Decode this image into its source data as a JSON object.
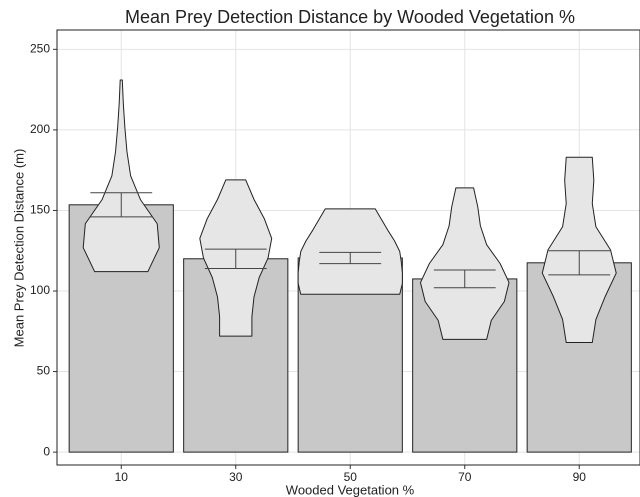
{
  "chart_data": {
    "type": "bar_violin",
    "title": "Mean Prey Detection Distance by Wooded Vegetation %",
    "x_label": "Wooded Vegetation %",
    "y_label": "Mean Prey Detection Distance (m)",
    "categories": [
      "10",
      "30",
      "50",
      "70",
      "90"
    ],
    "values": [
      153.5,
      120,
      120.5,
      107.5,
      117.5
    ],
    "errors": [
      7.5,
      6,
      3.5,
      5.5,
      7.5
    ],
    "color": "#c8c8c8",
    "violin_color": "#e6e6e6",
    "violins": [
      {
        "range": [
          112,
          231
        ],
        "density": [
          0.51,
          0.73,
          0.69,
          0.37,
          0.18,
          0.11,
          0.07,
          0.04,
          0.02
        ]
      },
      {
        "range": [
          72,
          169
        ],
        "density": [
          0.31,
          0.31,
          0.35,
          0.45,
          0.62,
          0.69,
          0.55,
          0.35,
          0.19
        ]
      },
      {
        "range": [
          98,
          151
        ],
        "density": [
          0.95,
          1.0,
          1.0,
          0.98,
          0.95,
          0.85,
          0.72,
          0.6,
          0.48
        ]
      },
      {
        "range": [
          70,
          164
        ],
        "density": [
          0.42,
          0.51,
          0.76,
          0.85,
          0.68,
          0.42,
          0.3,
          0.25,
          0.17
        ]
      },
      {
        "range": [
          68,
          183
        ],
        "density": [
          0.25,
          0.32,
          0.5,
          0.71,
          0.6,
          0.32,
          0.25,
          0.28,
          0.25
        ]
      }
    ],
    "ylim": [
      -8,
      262
    ],
    "yticks": [
      0,
      50,
      100,
      150,
      200,
      250
    ],
    "grid": true
  }
}
